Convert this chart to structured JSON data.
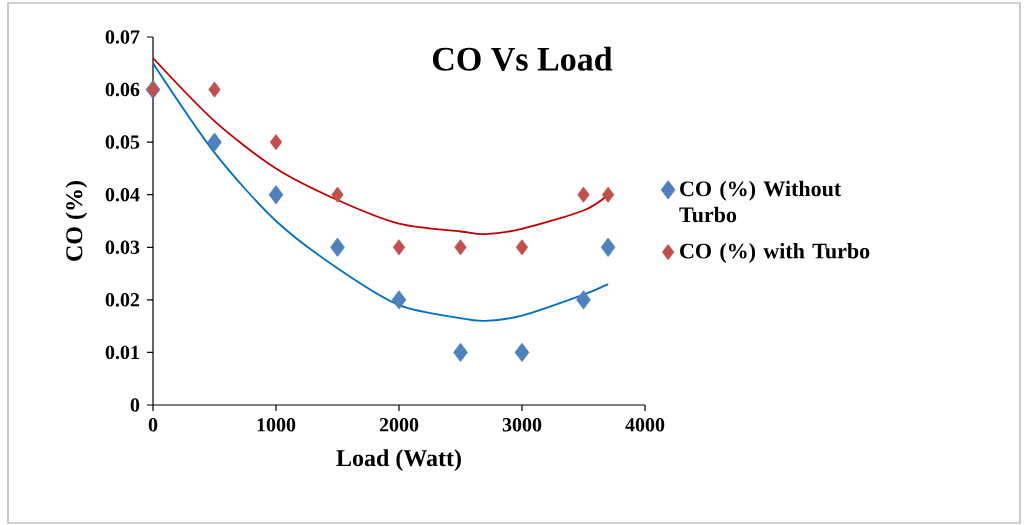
{
  "chart_data": {
    "type": "scatter",
    "title": "CO Vs Load",
    "xlabel": "Load (Watt)",
    "ylabel": "CO (%)",
    "xlim": [
      0,
      4000
    ],
    "ylim": [
      0,
      0.07
    ],
    "xticks": [
      0,
      1000,
      2000,
      3000,
      4000
    ],
    "yticks": [
      0,
      0.01,
      0.02,
      0.03,
      0.04,
      0.05,
      0.06,
      0.07
    ],
    "legend": "right",
    "marker": "diamond",
    "grid": false,
    "series": [
      {
        "name": "CO (%) Without Turbo",
        "color": "#4f81bd",
        "x": [
          0,
          500,
          1000,
          1500,
          2000,
          2500,
          3000,
          3500,
          3700
        ],
        "values": [
          0.06,
          0.05,
          0.04,
          0.03,
          0.02,
          0.01,
          0.01,
          0.02,
          0.03
        ]
      },
      {
        "name": "CO (%) with Turbo",
        "color": "#c0504d",
        "x": [
          0,
          500,
          1000,
          1500,
          2000,
          2500,
          3000,
          3500,
          3700
        ],
        "values": [
          0.06,
          0.06,
          0.05,
          0.04,
          0.03,
          0.03,
          0.03,
          0.04,
          0.04
        ]
      },
      {
        "type": "line",
        "marker": "none",
        "line_style": "solid",
        "color": "#0070c0",
        "x": [
          0,
          500,
          1000,
          1500,
          2000,
          2500,
          2700,
          3000,
          3500,
          3700
        ],
        "values": [
          0.065,
          0.048,
          0.035,
          0.026,
          0.019,
          0.0165,
          0.016,
          0.017,
          0.021,
          0.023
        ]
      },
      {
        "type": "line",
        "marker": "none",
        "line_style": "solid",
        "color": "#c00000",
        "x": [
          0,
          500,
          1000,
          1500,
          2000,
          2500,
          2700,
          3000,
          3500,
          3700
        ],
        "values": [
          0.066,
          0.054,
          0.045,
          0.039,
          0.0345,
          0.033,
          0.0325,
          0.0335,
          0.037,
          0.04
        ]
      }
    ]
  }
}
